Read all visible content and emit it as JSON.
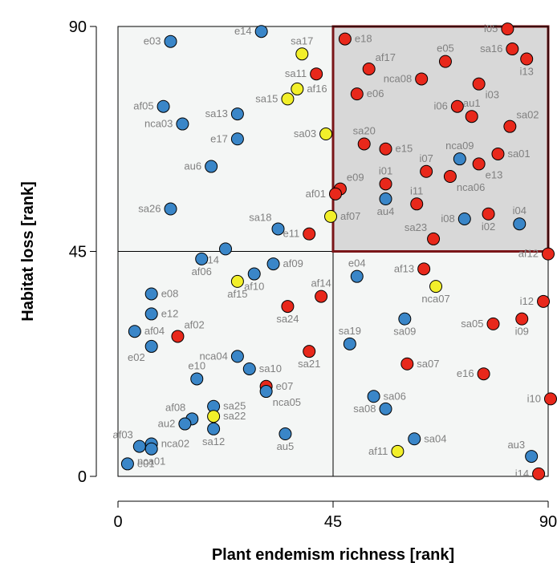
{
  "chart_data": {
    "type": "scatter",
    "xlabel": "Plant endemism richness [rank]",
    "ylabel": "Habitat loss [rank]",
    "xlim": [
      0,
      90
    ],
    "ylim": [
      0,
      90
    ],
    "xticks": [
      0,
      45,
      90
    ],
    "yticks": [
      0,
      45,
      90
    ],
    "xtick_labels": [
      "0",
      "45",
      "90"
    ],
    "ytick_labels": [
      "0",
      "45",
      "90"
    ],
    "quadrant_split": {
      "x": 45,
      "y": 45
    },
    "highlight_quadrant": "top-right",
    "colors": {
      "blue": "#3a86c8",
      "red": "#e8281b",
      "yellow": "#f2ef2a",
      "highlight_fill": "#d8d8d8",
      "highlight_border": "#7a1518",
      "plot_fill": "#f4f6f5",
      "label": "#808080"
    },
    "points": [
      {
        "label": "e03",
        "x": 11,
        "y": 87,
        "color": "blue",
        "pos": "left"
      },
      {
        "label": "e14",
        "x": 30,
        "y": 89,
        "color": "blue",
        "pos": "left"
      },
      {
        "label": "sa17",
        "x": 38.5,
        "y": 84.5,
        "color": "yellow",
        "pos": "above"
      },
      {
        "label": "e18",
        "x": 47.5,
        "y": 87.5,
        "color": "red",
        "pos": "right"
      },
      {
        "label": "af17",
        "x": 52.5,
        "y": 81.5,
        "color": "red",
        "pos": "above-right"
      },
      {
        "label": "e05",
        "x": 68.5,
        "y": 83,
        "color": "red",
        "pos": "above"
      },
      {
        "label": "i05",
        "x": 81.5,
        "y": 89.5,
        "color": "red",
        "pos": "left"
      },
      {
        "label": "sa16",
        "x": 82.5,
        "y": 85.5,
        "color": "red",
        "pos": "left"
      },
      {
        "label": "i13",
        "x": 85.5,
        "y": 83.5,
        "color": "red",
        "pos": "below"
      },
      {
        "label": "sa11",
        "x": 41.5,
        "y": 80.5,
        "color": "red",
        "pos": "left"
      },
      {
        "label": "af16",
        "x": 37.5,
        "y": 77.5,
        "color": "yellow",
        "pos": "right"
      },
      {
        "label": "sa15",
        "x": 35.5,
        "y": 75.5,
        "color": "yellow",
        "pos": "left"
      },
      {
        "label": "e06",
        "x": 50,
        "y": 76.5,
        "color": "red",
        "pos": "right"
      },
      {
        "label": "nca08",
        "x": 63.5,
        "y": 79.5,
        "color": "red",
        "pos": "left"
      },
      {
        "label": "i03",
        "x": 75.5,
        "y": 78.5,
        "color": "red",
        "pos": "below-right"
      },
      {
        "label": "af05",
        "x": 9.5,
        "y": 74,
        "color": "blue",
        "pos": "left"
      },
      {
        "label": "sa13",
        "x": 25,
        "y": 72.5,
        "color": "blue",
        "pos": "left"
      },
      {
        "label": "i06",
        "x": 71,
        "y": 74,
        "color": "red",
        "pos": "left"
      },
      {
        "label": "au1",
        "x": 74,
        "y": 72,
        "color": "red",
        "pos": "above"
      },
      {
        "label": "sa02",
        "x": 82,
        "y": 70,
        "color": "red",
        "pos": "above-right"
      },
      {
        "label": "nca03",
        "x": 13.5,
        "y": 70.5,
        "color": "blue",
        "pos": "left"
      },
      {
        "label": "e17",
        "x": 25,
        "y": 67.5,
        "color": "blue",
        "pos": "left"
      },
      {
        "label": "sa03",
        "x": 43.5,
        "y": 68.5,
        "color": "yellow",
        "pos": "left"
      },
      {
        "label": "sa20",
        "x": 51.5,
        "y": 66.5,
        "color": "red",
        "pos": "above"
      },
      {
        "label": "e15",
        "x": 56,
        "y": 65.5,
        "color": "red",
        "pos": "right"
      },
      {
        "label": "nca09",
        "x": 71.5,
        "y": 63.5,
        "color": "blue",
        "pos": "above"
      },
      {
        "label": "sa01",
        "x": 79.5,
        "y": 64.5,
        "color": "red",
        "pos": "right"
      },
      {
        "label": "e13",
        "x": 75.5,
        "y": 62.5,
        "color": "red",
        "pos": "below-right"
      },
      {
        "label": "au6",
        "x": 19.5,
        "y": 62,
        "color": "blue",
        "pos": "left"
      },
      {
        "label": "i07",
        "x": 64.5,
        "y": 61,
        "color": "red",
        "pos": "above"
      },
      {
        "label": "e09",
        "x": 46.5,
        "y": 57.5,
        "color": "red",
        "pos": "above-right"
      },
      {
        "label": "i01",
        "x": 56,
        "y": 58.5,
        "color": "red",
        "pos": "above"
      },
      {
        "label": "nca06",
        "x": 69.5,
        "y": 60,
        "color": "red",
        "pos": "below-right"
      },
      {
        "label": "af01",
        "x": 45.5,
        "y": 56.5,
        "color": "red",
        "pos": "left"
      },
      {
        "label": "au4",
        "x": 56,
        "y": 55.5,
        "color": "blue",
        "pos": "below"
      },
      {
        "label": "i11",
        "x": 62.5,
        "y": 54.5,
        "color": "red",
        "pos": "above"
      },
      {
        "label": "sa26",
        "x": 11,
        "y": 53.5,
        "color": "blue",
        "pos": "left"
      },
      {
        "label": "i08",
        "x": 72.5,
        "y": 51.5,
        "color": "blue",
        "pos": "left"
      },
      {
        "label": "i02",
        "x": 77.5,
        "y": 52.5,
        "color": "red",
        "pos": "below"
      },
      {
        "label": "i04",
        "x": 84,
        "y": 50.5,
        "color": "blue",
        "pos": "above"
      },
      {
        "label": "af07",
        "x": 44.5,
        "y": 52,
        "color": "yellow",
        "pos": "right"
      },
      {
        "label": "sa18",
        "x": 33.5,
        "y": 49.5,
        "color": "blue",
        "pos": "above-left"
      },
      {
        "label": "e11",
        "x": 40,
        "y": 48.5,
        "color": "red",
        "pos": "left"
      },
      {
        "label": "sa23",
        "x": 66,
        "y": 47.5,
        "color": "red",
        "pos": "above-left"
      },
      {
        "label": "af12",
        "x": 90,
        "y": 44.5,
        "color": "red",
        "pos": "left"
      },
      {
        "label": "sa14",
        "x": 22.5,
        "y": 45.5,
        "color": "blue",
        "pos": "below-left"
      },
      {
        "label": "af06",
        "x": 17.5,
        "y": 43.5,
        "color": "blue",
        "pos": "below"
      },
      {
        "label": "af09",
        "x": 32.5,
        "y": 42.5,
        "color": "blue",
        "pos": "right"
      },
      {
        "label": "e04",
        "x": 50,
        "y": 40,
        "color": "blue",
        "pos": "above"
      },
      {
        "label": "af13",
        "x": 64,
        "y": 41.5,
        "color": "red",
        "pos": "left"
      },
      {
        "label": "e08",
        "x": 7,
        "y": 36.5,
        "color": "blue",
        "pos": "right"
      },
      {
        "label": "af15",
        "x": 25,
        "y": 39,
        "color": "yellow",
        "pos": "below"
      },
      {
        "label": "af10",
        "x": 28.5,
        "y": 40.5,
        "color": "blue",
        "pos": "below"
      },
      {
        "label": "nca07",
        "x": 66.5,
        "y": 38,
        "color": "yellow",
        "pos": "below"
      },
      {
        "label": "af14",
        "x": 42.5,
        "y": 36,
        "color": "red",
        "pos": "above"
      },
      {
        "label": "e12",
        "x": 7,
        "y": 32.5,
        "color": "blue",
        "pos": "right"
      },
      {
        "label": "sa24",
        "x": 35.5,
        "y": 34,
        "color": "red",
        "pos": "below"
      },
      {
        "label": "i12",
        "x": 89,
        "y": 35,
        "color": "red",
        "pos": "left"
      },
      {
        "label": "af04",
        "x": 3.5,
        "y": 29,
        "color": "blue",
        "pos": "right"
      },
      {
        "label": "af02",
        "x": 12.5,
        "y": 28,
        "color": "red",
        "pos": "above-right"
      },
      {
        "label": "sa09",
        "x": 60,
        "y": 31.5,
        "color": "blue",
        "pos": "below"
      },
      {
        "label": "sa05",
        "x": 78.5,
        "y": 30.5,
        "color": "red",
        "pos": "left"
      },
      {
        "label": "i09",
        "x": 84.5,
        "y": 31.5,
        "color": "red",
        "pos": "below"
      },
      {
        "label": "e02",
        "x": 7,
        "y": 26,
        "color": "blue",
        "pos": "below-left"
      },
      {
        "label": "sa19",
        "x": 48.5,
        "y": 26.5,
        "color": "blue",
        "pos": "above"
      },
      {
        "label": "nca04",
        "x": 25,
        "y": 24,
        "color": "blue",
        "pos": "left"
      },
      {
        "label": "sa10",
        "x": 27.5,
        "y": 21.5,
        "color": "blue",
        "pos": "right"
      },
      {
        "label": "sa21",
        "x": 40,
        "y": 25,
        "color": "red",
        "pos": "below"
      },
      {
        "label": "sa07",
        "x": 60.5,
        "y": 22.5,
        "color": "red",
        "pos": "right"
      },
      {
        "label": "e16",
        "x": 76.5,
        "y": 20.5,
        "color": "red",
        "pos": "left"
      },
      {
        "label": "e10",
        "x": 16.5,
        "y": 19.5,
        "color": "blue",
        "pos": "above"
      },
      {
        "label": "e07",
        "x": 31,
        "y": 18,
        "color": "red",
        "pos": "right"
      },
      {
        "label": "nca05",
        "x": 31,
        "y": 17,
        "color": "blue",
        "pos": "below-right"
      },
      {
        "label": "sa06",
        "x": 53.5,
        "y": 16,
        "color": "blue",
        "pos": "right"
      },
      {
        "label": "sa08",
        "x": 56,
        "y": 13.5,
        "color": "blue",
        "pos": "left"
      },
      {
        "label": "i10",
        "x": 90.5,
        "y": 15.5,
        "color": "red",
        "pos": "left"
      },
      {
        "label": "sa25",
        "x": 20,
        "y": 14,
        "color": "blue",
        "pos": "right"
      },
      {
        "label": "af08",
        "x": 15.5,
        "y": 11.5,
        "color": "blue",
        "pos": "above-left"
      },
      {
        "label": "sa22",
        "x": 20,
        "y": 12,
        "color": "yellow",
        "pos": "right"
      },
      {
        "label": "au2",
        "x": 14,
        "y": 10.5,
        "color": "blue",
        "pos": "left"
      },
      {
        "label": "sa12",
        "x": 20,
        "y": 9.5,
        "color": "blue",
        "pos": "below"
      },
      {
        "label": "au5",
        "x": 35,
        "y": 8.5,
        "color": "blue",
        "pos": "below"
      },
      {
        "label": "af03",
        "x": 4.5,
        "y": 6,
        "color": "blue",
        "pos": "above-left"
      },
      {
        "label": "nca02",
        "x": 7,
        "y": 6.5,
        "color": "blue",
        "pos": "right"
      },
      {
        "label": "nca01",
        "x": 7,
        "y": 5.5,
        "color": "blue",
        "pos": "below"
      },
      {
        "label": "sa04",
        "x": 62,
        "y": 7.5,
        "color": "blue",
        "pos": "right"
      },
      {
        "label": "af11",
        "x": 58.5,
        "y": 5,
        "color": "yellow",
        "pos": "left"
      },
      {
        "label": "au3",
        "x": 86.5,
        "y": 4,
        "color": "blue",
        "pos": "above-left"
      },
      {
        "label": "e01",
        "x": 2,
        "y": 2.5,
        "color": "blue",
        "pos": "right"
      },
      {
        "label": "i14",
        "x": 88,
        "y": 0.5,
        "color": "red",
        "pos": "left"
      }
    ]
  }
}
